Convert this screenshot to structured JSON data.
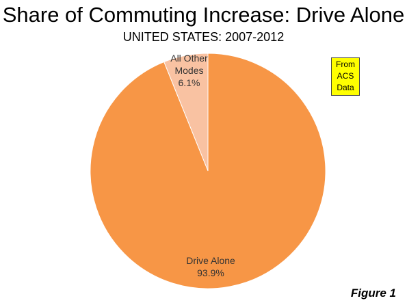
{
  "title": "Share of Commuting Increase: Drive Alone",
  "subtitle": "UNITED STATES: 2007-2012",
  "note": {
    "lines": [
      "From",
      "ACS",
      "Data"
    ],
    "color": "#ffff00"
  },
  "figure_label": "Figure 1",
  "chart_data": {
    "type": "pie",
    "title": "Share of Commuting Increase: Drive Alone",
    "subtitle": "UNITED STATES: 2007-2012",
    "start": "12 o'clock",
    "slices": [
      {
        "label_lines": [
          "Drive Alone"
        ],
        "value": 93.9,
        "value_label": "93.9%",
        "color": "#f79646"
      },
      {
        "label_lines": [
          "All Other",
          "Modes"
        ],
        "value": 6.1,
        "value_label": "6.1%",
        "color": "#f9c2a2"
      }
    ]
  }
}
